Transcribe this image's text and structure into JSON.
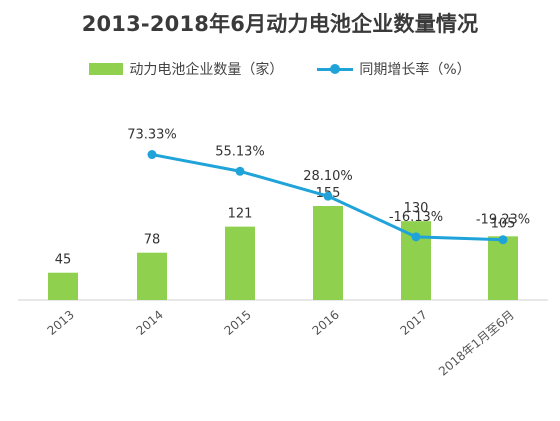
{
  "chart_data": {
    "type": "bar+line",
    "title": "2013-2018年6月动力电池企业数量情况",
    "categories": [
      "2013",
      "2014",
      "2015",
      "2016",
      "2017",
      "2018年1月至6月"
    ],
    "series": [
      {
        "name": "动力电池企业数量（家）",
        "type": "bar",
        "values": [
          45,
          78,
          121,
          155,
          130,
          105
        ],
        "labels": [
          "45",
          "78",
          "121",
          "155",
          "130",
          "105"
        ],
        "color": "#8fd14f"
      },
      {
        "name": "同期增长率（%）",
        "type": "line",
        "values": [
          null,
          73.33,
          55.13,
          28.1,
          -16.13,
          -19.23
        ],
        "labels": [
          "",
          "73.33%",
          "55.13%",
          "28.10%",
          "-16.13%",
          "-19.23%"
        ],
        "color": "#1fa3d9"
      }
    ],
    "legend_position": "top",
    "grid": false
  }
}
